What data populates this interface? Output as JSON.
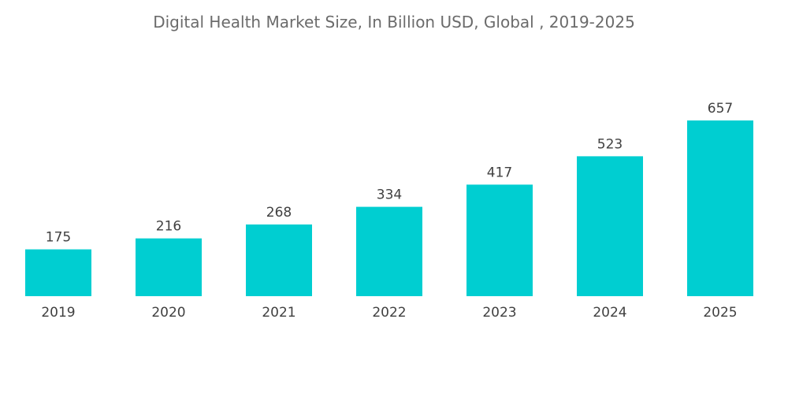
{
  "chart_data": {
    "type": "bar",
    "title": "Digital Health Market Size, In Billion USD, Global , 2019-2025",
    "categories": [
      "2019",
      "2020",
      "2021",
      "2022",
      "2023",
      "2024",
      "2025"
    ],
    "values": [
      175,
      216,
      268,
      334,
      417,
      523,
      657
    ],
    "xlabel": "",
    "ylabel": "",
    "grid": false,
    "legend": "none",
    "bar_color": "#00ced1"
  }
}
